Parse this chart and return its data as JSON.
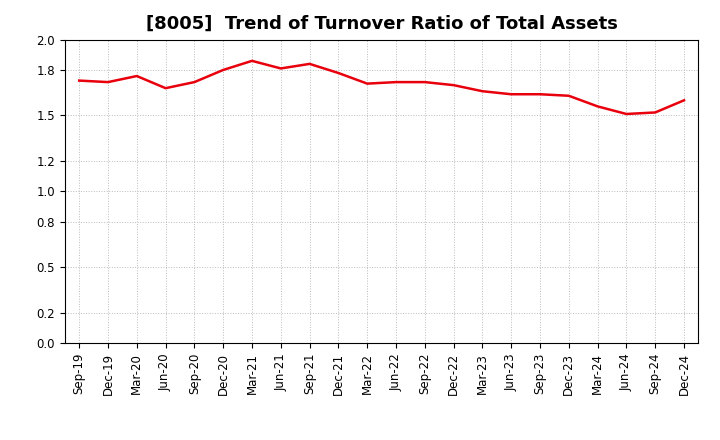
{
  "title": "[8005]  Trend of Turnover Ratio of Total Assets",
  "labels": [
    "Sep-19",
    "Dec-19",
    "Mar-20",
    "Jun-20",
    "Sep-20",
    "Dec-20",
    "Mar-21",
    "Jun-21",
    "Sep-21",
    "Dec-21",
    "Mar-22",
    "Jun-22",
    "Sep-22",
    "Dec-22",
    "Mar-23",
    "Jun-23",
    "Sep-23",
    "Dec-23",
    "Mar-24",
    "Jun-24",
    "Sep-24",
    "Dec-24"
  ],
  "values": [
    1.73,
    1.72,
    1.76,
    1.68,
    1.72,
    1.8,
    1.86,
    1.81,
    1.84,
    1.78,
    1.71,
    1.72,
    1.72,
    1.7,
    1.66,
    1.64,
    1.64,
    1.63,
    1.56,
    1.51,
    1.52,
    1.6
  ],
  "line_color": "#e8000d",
  "line_width": 1.8,
  "ylim": [
    0.0,
    2.0
  ],
  "yticks": [
    0.0,
    0.2,
    0.5,
    0.8,
    1.0,
    1.2,
    1.5,
    1.8,
    2.0
  ],
  "bg_color": "#ffffff",
  "grid_color": "#aaaaaa",
  "title_fontsize": 13,
  "tick_fontsize": 8.5
}
